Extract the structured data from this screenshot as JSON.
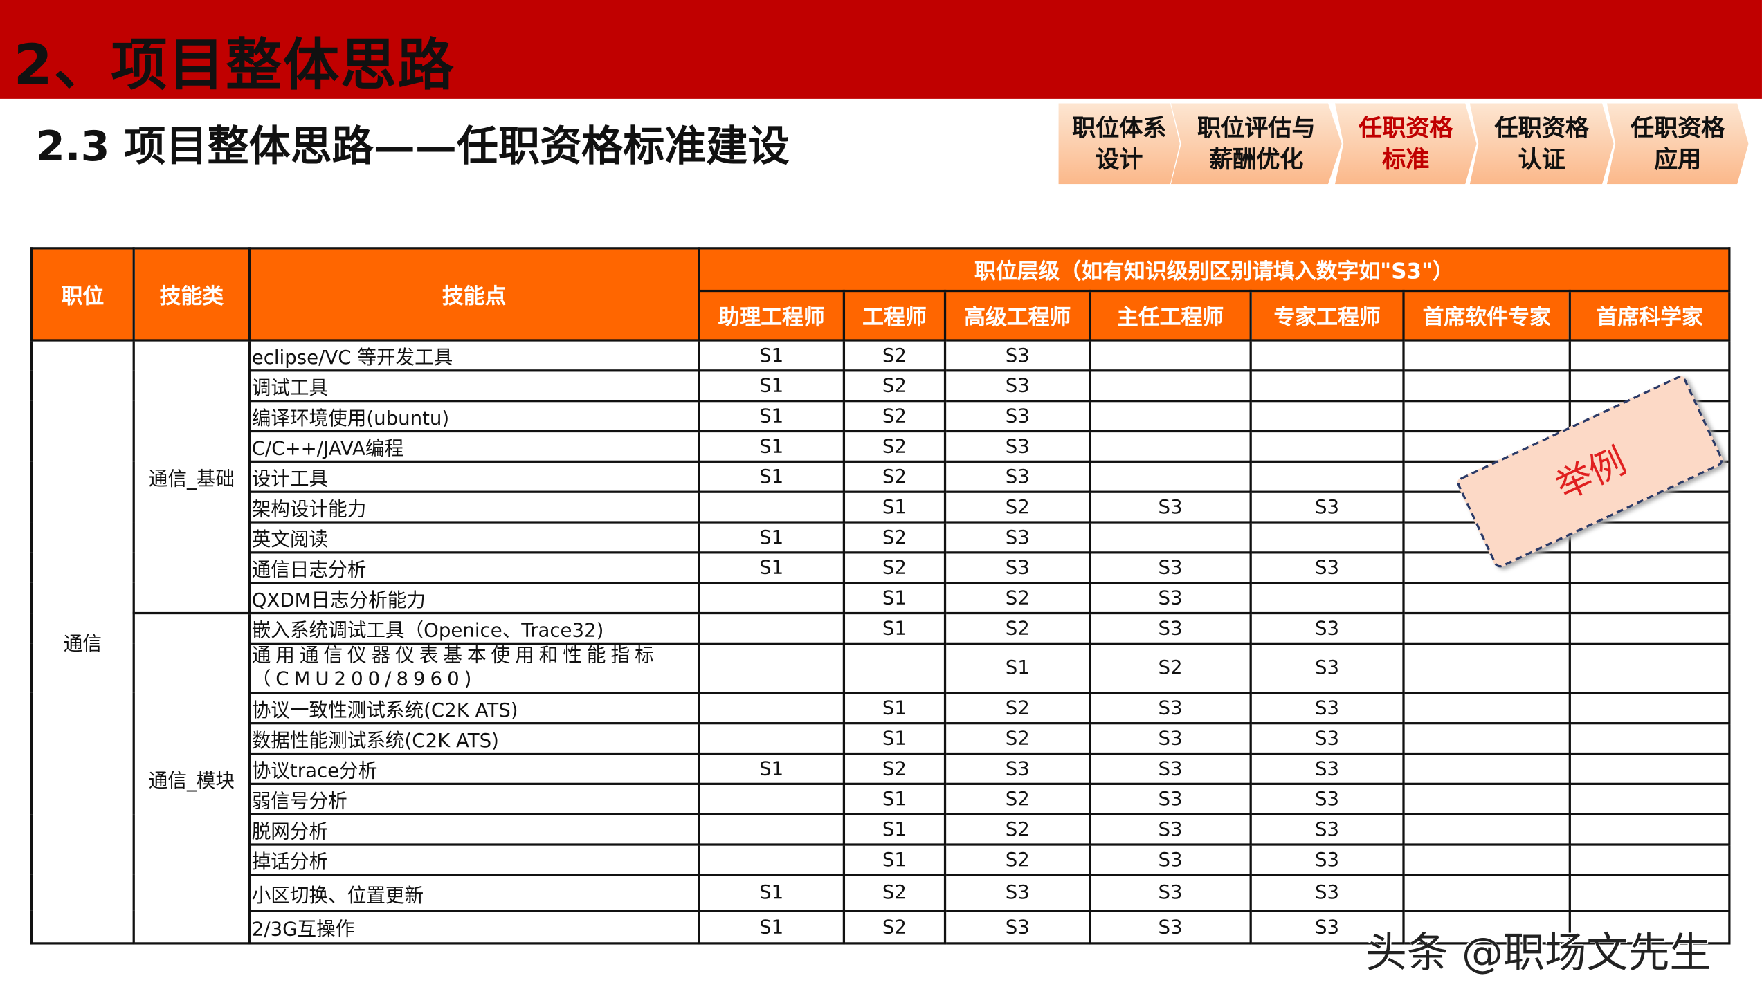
{
  "title": "2、项目整体思路",
  "subtitle": "2.3  项目整体思路——任职资格标准建设",
  "colors": {
    "title_bar": "#c00000",
    "header": "#ff6600",
    "active_step": "#c00000"
  },
  "steps": [
    {
      "line1": "职位体系",
      "line2": "设计",
      "active": false
    },
    {
      "line1": "职位评估与",
      "line2": "薪酬优化",
      "active": false
    },
    {
      "line1": "任职资格",
      "line2": "标准",
      "active": true
    },
    {
      "line1": "任职资格",
      "line2": "认证",
      "active": false
    },
    {
      "line1": "任职资格",
      "line2": "应用",
      "active": false
    }
  ],
  "table": {
    "headers": {
      "position": "职位",
      "skill_class": "技能类",
      "skill_point": "技能点",
      "level_group": "职位层级（如有知识级别区别请填入数字如\"S3\"）"
    },
    "levels": [
      "助理工程师",
      "工程师",
      "高级工程师",
      "主任工程师",
      "专家工程师",
      "首席软件专家",
      "首席科学家"
    ],
    "position": "通信",
    "groups": [
      {
        "name": "通信_基础",
        "rows": [
          {
            "skill": "eclipse/VC 等开发工具",
            "values": [
              "S1",
              "S2",
              "S3",
              "",
              "",
              "",
              ""
            ]
          },
          {
            "skill": "调试工具",
            "values": [
              "S1",
              "S2",
              "S3",
              "",
              "",
              "",
              ""
            ]
          },
          {
            "skill": "编译环境使用(ubuntu)",
            "values": [
              "S1",
              "S2",
              "S3",
              "",
              "",
              "",
              ""
            ]
          },
          {
            "skill": "C/C++/JAVA编程",
            "values": [
              "S1",
              "S2",
              "S3",
              "",
              "",
              "",
              ""
            ]
          },
          {
            "skill": "设计工具",
            "values": [
              "S1",
              "S2",
              "S3",
              "",
              "",
              "",
              ""
            ]
          },
          {
            "skill": "架构设计能力",
            "values": [
              "",
              "S1",
              "S2",
              "S3",
              "S3",
              "",
              ""
            ]
          },
          {
            "skill": "英文阅读",
            "values": [
              "S1",
              "S2",
              "S3",
              "",
              "",
              "",
              ""
            ]
          },
          {
            "skill": "通信日志分析",
            "values": [
              "S1",
              "S2",
              "S3",
              "S3",
              "S3",
              "",
              ""
            ]
          },
          {
            "skill": "QXDM日志分析能力",
            "values": [
              "",
              "S1",
              "S2",
              "S3",
              "",
              "",
              ""
            ]
          }
        ]
      },
      {
        "name": "通信_模块",
        "rows": [
          {
            "skill": "嵌入系统调试工具（Openice、Trace32)",
            "values": [
              "",
              "S1",
              "S2",
              "S3",
              "S3",
              "",
              ""
            ]
          },
          {
            "skill": "通用通信仪器仪表基本使用和性能指标（CMU200/8960)",
            "values": [
              "",
              "",
              "S1",
              "S2",
              "S3",
              "",
              ""
            ]
          },
          {
            "skill": "协议一致性测试系统(C2K ATS)",
            "values": [
              "",
              "S1",
              "S2",
              "S3",
              "S3",
              "",
              ""
            ]
          },
          {
            "skill": "数据性能测试系统(C2K ATS)",
            "values": [
              "",
              "S1",
              "S2",
              "S3",
              "S3",
              "",
              ""
            ]
          },
          {
            "skill": "协议trace分析",
            "values": [
              "S1",
              "S2",
              "S3",
              "S3",
              "S3",
              "",
              ""
            ]
          },
          {
            "skill": "弱信号分析",
            "values": [
              "",
              "S1",
              "S2",
              "S3",
              "S3",
              "",
              ""
            ]
          },
          {
            "skill": "脱网分析",
            "values": [
              "",
              "S1",
              "S2",
              "S3",
              "S3",
              "",
              ""
            ]
          },
          {
            "skill": "掉话分析",
            "values": [
              "",
              "S1",
              "S2",
              "S3",
              "S3",
              "",
              ""
            ]
          },
          {
            "skill": "小区切换、位置更新",
            "values": [
              "S1",
              "S2",
              "S3",
              "S3",
              "S3",
              "",
              ""
            ]
          },
          {
            "skill": "2/3G互操作",
            "values": [
              "S1",
              "S2",
              "S3",
              "S3",
              "S3",
              "",
              ""
            ]
          }
        ]
      }
    ]
  },
  "stamp": "举例",
  "watermark": "头条 @职场文先生"
}
